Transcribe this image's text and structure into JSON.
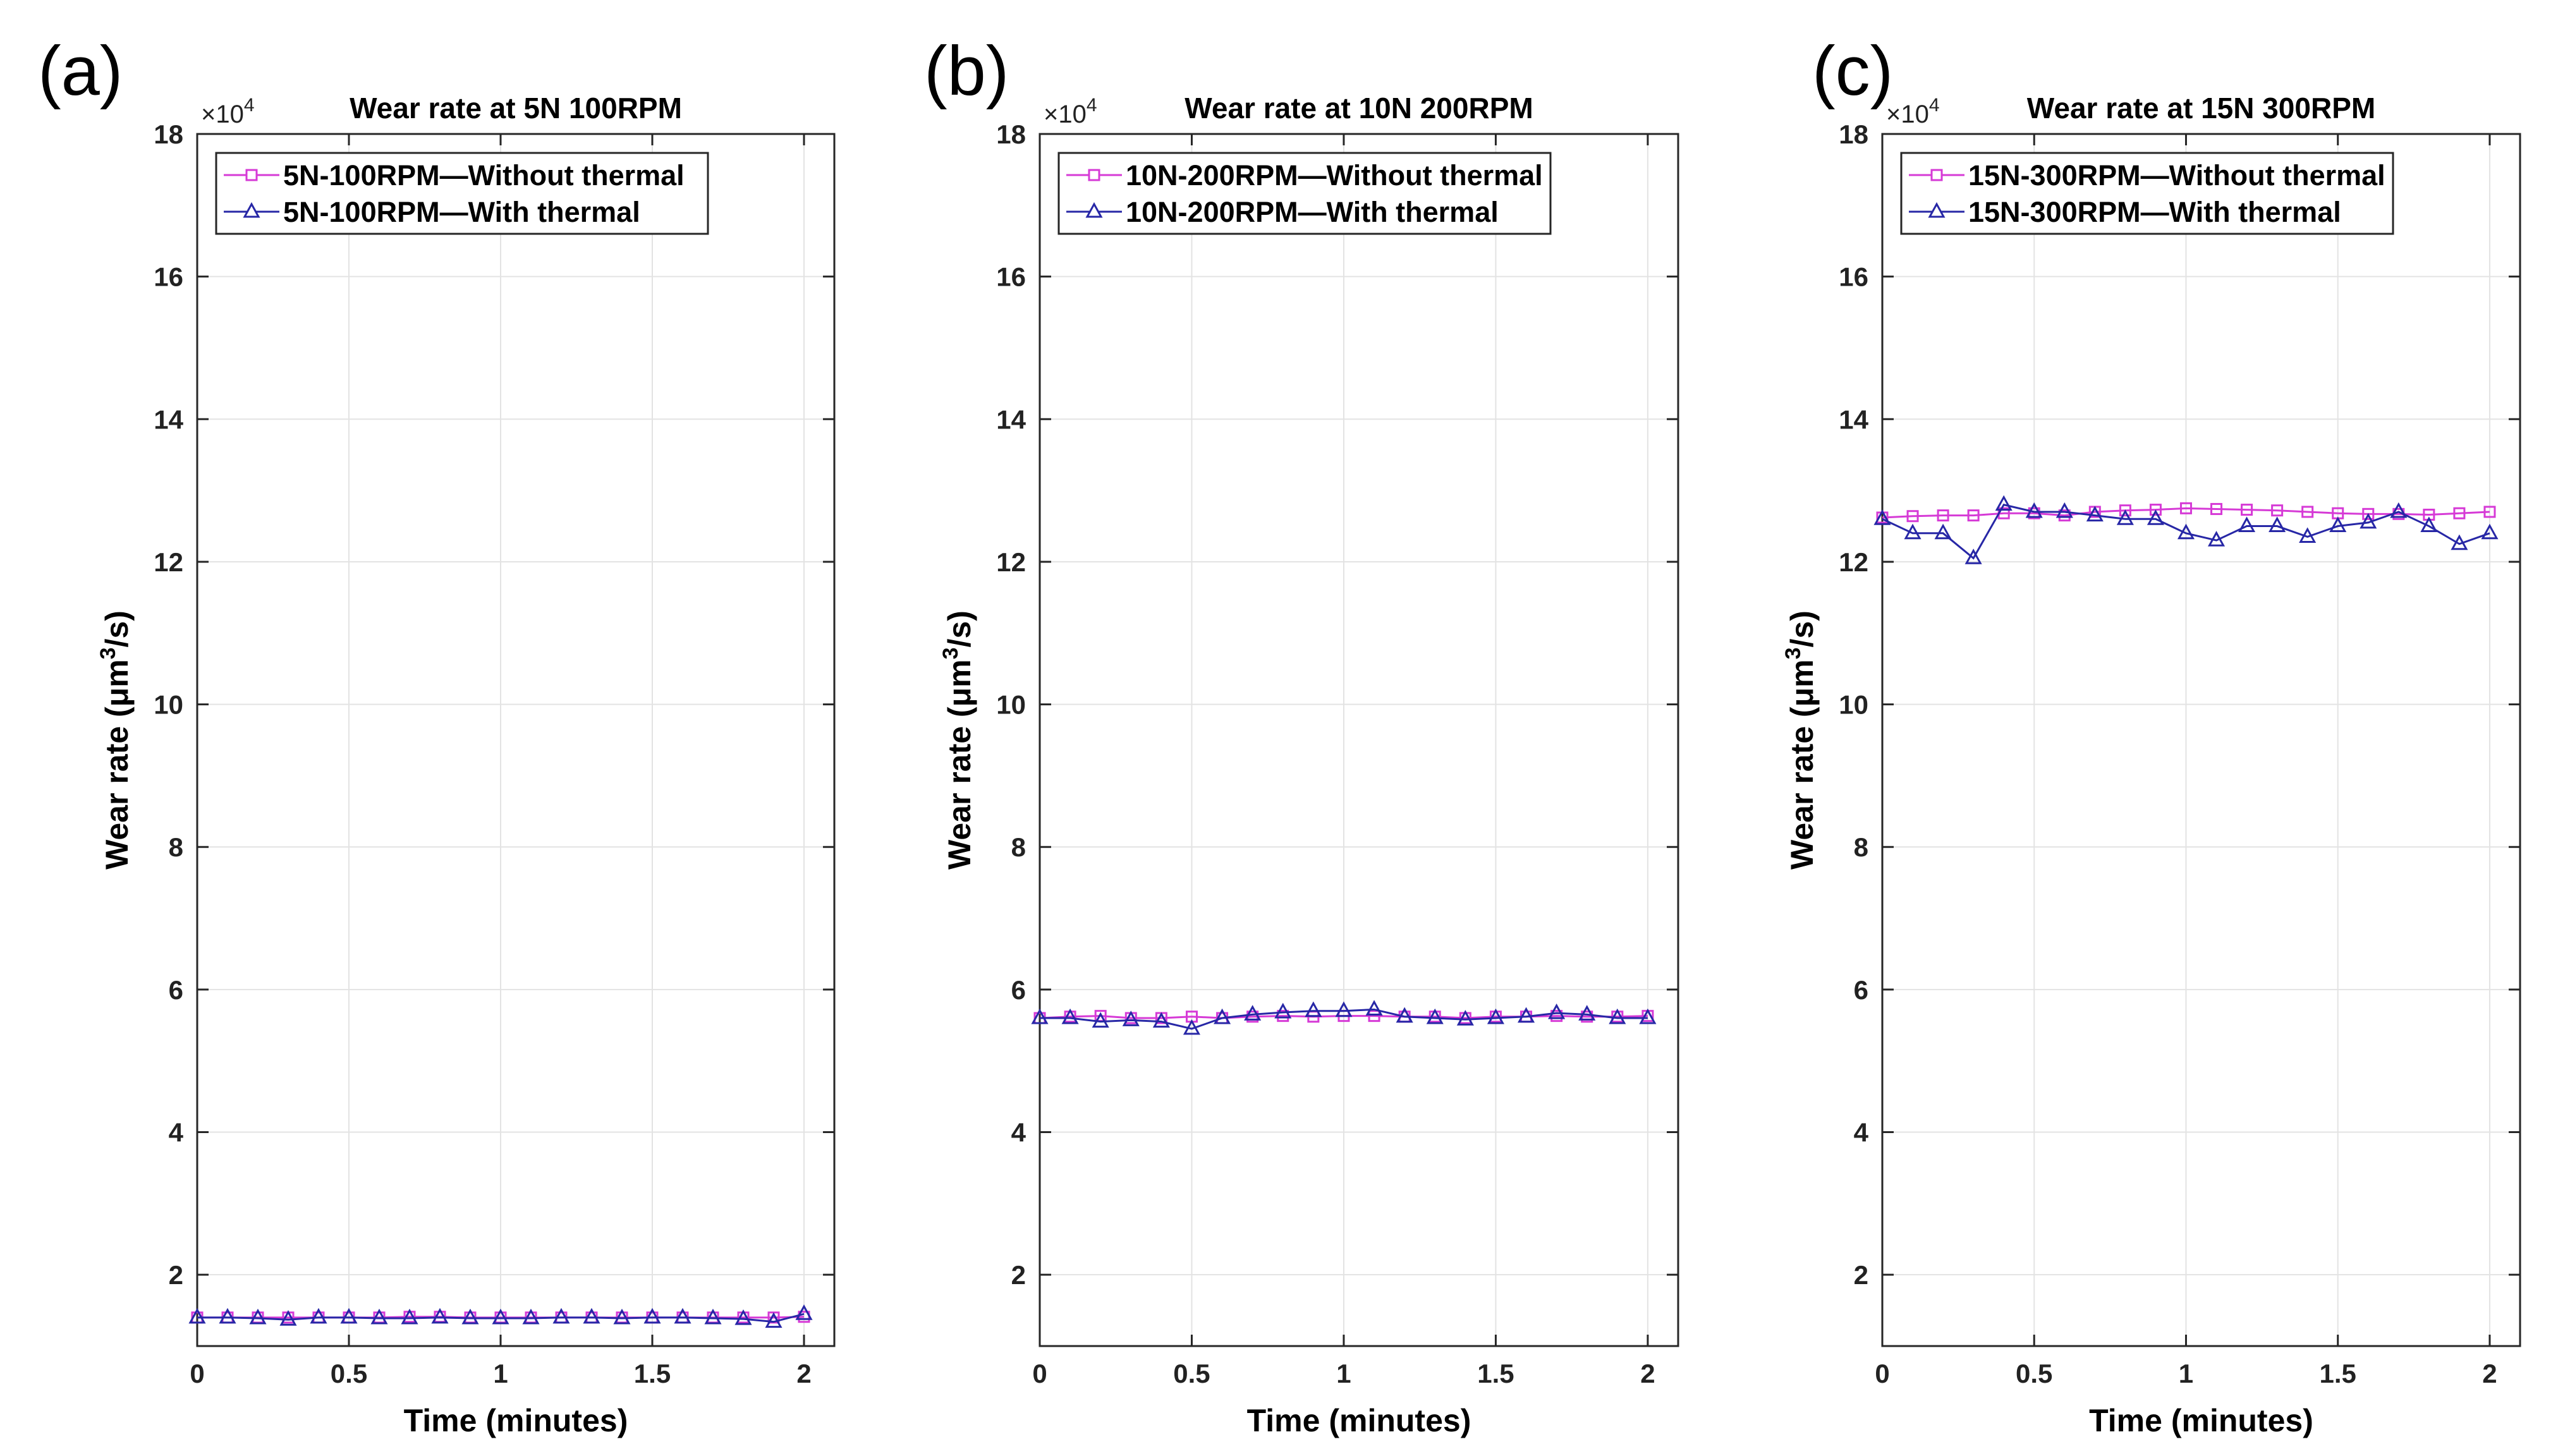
{
  "figure": {
    "colors": {
      "without_thermal": "#d63ad6",
      "with_thermal": "#2727a6",
      "grid": "#e3e3e3"
    }
  },
  "chart_data": [
    {
      "type": "line",
      "panel_label": "(a)",
      "title": "Wear rate at 5N 100RPM",
      "xlabel": "Time (minutes)",
      "ylabel": "Wear rate (μm³/s)",
      "ylabel_parts": [
        "Wear rate (μm",
        "3",
        "/s)"
      ],
      "y_exponent": "×10",
      "y_exponent_power": "4",
      "xlim": [
        0,
        2.1
      ],
      "ylim": [
        1,
        18
      ],
      "xticks": [
        0,
        0.5,
        1,
        1.5,
        2
      ],
      "xtick_labels": [
        "0",
        "0.5",
        "1",
        "1.5",
        "2"
      ],
      "yticks": [
        2,
        4,
        6,
        8,
        10,
        12,
        14,
        16,
        18
      ],
      "ytick_labels": [
        "2",
        "4",
        "6",
        "8",
        "10",
        "12",
        "14",
        "16",
        "18"
      ],
      "legend_location": "top-left",
      "x": [
        0,
        0.1,
        0.2,
        0.3,
        0.4,
        0.5,
        0.6,
        0.7,
        0.8,
        0.9,
        1.0,
        1.1,
        1.2,
        1.3,
        1.4,
        1.5,
        1.6,
        1.7,
        1.8,
        1.9,
        2.0
      ],
      "series": [
        {
          "name": "5N-100RPM—Without thermal",
          "marker": "square",
          "color_key": "without_thermal",
          "values": [
            1.4,
            1.4,
            1.4,
            1.4,
            1.4,
            1.4,
            1.4,
            1.41,
            1.41,
            1.4,
            1.4,
            1.4,
            1.4,
            1.4,
            1.4,
            1.4,
            1.4,
            1.4,
            1.4,
            1.4,
            1.41
          ]
        },
        {
          "name": "5N-100RPM—With thermal",
          "marker": "triangle",
          "color_key": "with_thermal",
          "values": [
            1.4,
            1.4,
            1.39,
            1.37,
            1.4,
            1.4,
            1.39,
            1.39,
            1.4,
            1.39,
            1.39,
            1.39,
            1.4,
            1.4,
            1.39,
            1.4,
            1.4,
            1.39,
            1.38,
            1.34,
            1.45
          ]
        }
      ]
    },
    {
      "type": "line",
      "panel_label": "(b)",
      "title": "Wear rate at 10N 200RPM",
      "xlabel": "Time (minutes)",
      "ylabel": "Wear rate (μm³/s)",
      "ylabel_parts": [
        "Wear rate (μm",
        "3",
        "/s)"
      ],
      "y_exponent": "×10",
      "y_exponent_power": "4",
      "xlim": [
        0,
        2.1
      ],
      "ylim": [
        1,
        18
      ],
      "xticks": [
        0,
        0.5,
        1,
        1.5,
        2
      ],
      "xtick_labels": [
        "0",
        "0.5",
        "1",
        "1.5",
        "2"
      ],
      "yticks": [
        2,
        4,
        6,
        8,
        10,
        12,
        14,
        16,
        18
      ],
      "ytick_labels": [
        "2",
        "4",
        "6",
        "8",
        "10",
        "12",
        "14",
        "16",
        "18"
      ],
      "legend_location": "top-left",
      "x": [
        0,
        0.1,
        0.2,
        0.3,
        0.4,
        0.5,
        0.6,
        0.7,
        0.8,
        0.9,
        1.0,
        1.1,
        1.2,
        1.3,
        1.4,
        1.5,
        1.6,
        1.7,
        1.8,
        1.9,
        2.0
      ],
      "series": [
        {
          "name": "10N-200RPM—Without thermal",
          "marker": "square",
          "color_key": "without_thermal",
          "values": [
            5.6,
            5.62,
            5.63,
            5.6,
            5.6,
            5.62,
            5.6,
            5.62,
            5.63,
            5.62,
            5.63,
            5.63,
            5.62,
            5.62,
            5.6,
            5.62,
            5.62,
            5.63,
            5.62,
            5.62,
            5.63
          ]
        },
        {
          "name": "10N-200RPM—With thermal",
          "marker": "triangle",
          "color_key": "with_thermal",
          "values": [
            5.6,
            5.6,
            5.55,
            5.57,
            5.55,
            5.45,
            5.6,
            5.65,
            5.68,
            5.7,
            5.7,
            5.72,
            5.62,
            5.6,
            5.58,
            5.6,
            5.62,
            5.67,
            5.65,
            5.6,
            5.6
          ]
        }
      ]
    },
    {
      "type": "line",
      "panel_label": "(c)",
      "title": "Wear rate at 15N 300RPM",
      "xlabel": "Time (minutes)",
      "ylabel": "Wear rate (μm³/s)",
      "ylabel_parts": [
        "Wear rate (μm",
        "3",
        "/s)"
      ],
      "y_exponent": "×10",
      "y_exponent_power": "4",
      "xlim": [
        0,
        2.1
      ],
      "ylim": [
        1,
        18
      ],
      "xticks": [
        0,
        0.5,
        1,
        1.5,
        2
      ],
      "xtick_labels": [
        "0",
        "0.5",
        "1",
        "1.5",
        "2"
      ],
      "yticks": [
        2,
        4,
        6,
        8,
        10,
        12,
        14,
        16,
        18
      ],
      "ytick_labels": [
        "2",
        "4",
        "6",
        "8",
        "10",
        "12",
        "14",
        "16",
        "18"
      ],
      "legend_location": "top-left",
      "x": [
        0,
        0.1,
        0.2,
        0.3,
        0.4,
        0.5,
        0.6,
        0.7,
        0.8,
        0.9,
        1.0,
        1.1,
        1.2,
        1.3,
        1.4,
        1.5,
        1.6,
        1.7,
        1.8,
        1.9,
        2.0
      ],
      "series": [
        {
          "name": "15N-300RPM—Without thermal",
          "marker": "square",
          "color_key": "without_thermal",
          "values": [
            12.62,
            12.64,
            12.65,
            12.65,
            12.68,
            12.68,
            12.65,
            12.7,
            12.72,
            12.73,
            12.75,
            12.74,
            12.73,
            12.72,
            12.7,
            12.68,
            12.67,
            12.67,
            12.66,
            12.68,
            12.7
          ]
        },
        {
          "name": "15N-300RPM—With thermal",
          "marker": "triangle",
          "color_key": "with_thermal",
          "values": [
            12.6,
            12.4,
            12.4,
            12.05,
            12.8,
            12.7,
            12.7,
            12.65,
            12.6,
            12.6,
            12.4,
            12.3,
            12.5,
            12.5,
            12.35,
            12.5,
            12.55,
            12.7,
            12.5,
            12.25,
            12.4
          ]
        }
      ]
    }
  ]
}
